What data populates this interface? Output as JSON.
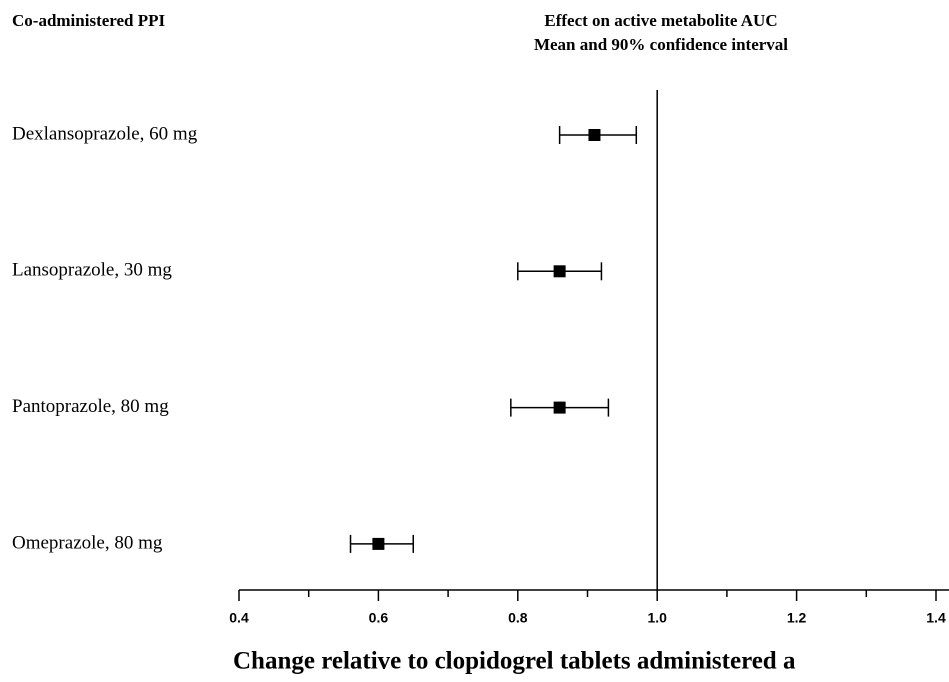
{
  "chart_data": {
    "type": "forest",
    "header": "Co-administered PPI",
    "title": "Effect on active metabolite AUC",
    "subtitle": "Mean and 90% confidence interval",
    "x_label": "Change relative to clopidogrel tablets administered a",
    "categories": [
      "Dexlansoprazole, 60 mg",
      "Lansoprazole, 30 mg",
      "Pantoprazole, 80 mg",
      "Omeprazole, 80 mg"
    ],
    "values": [
      0.91,
      0.86,
      0.86,
      0.6
    ],
    "lower": [
      0.86,
      0.8,
      0.79,
      0.56
    ],
    "upper": [
      0.97,
      0.92,
      0.93,
      0.65
    ],
    "color": "#000000",
    "xlim": [
      0.4,
      1.4
    ],
    "xticks": [
      0.4,
      0.6,
      0.8,
      {
        "value": 1,
        "label": "1.0"
      },
      1.2,
      1.4
    ],
    "minor_xticks": [
      0.5,
      0.7,
      0.9,
      1.1,
      1.3
    ],
    "reference_line": 1
  }
}
